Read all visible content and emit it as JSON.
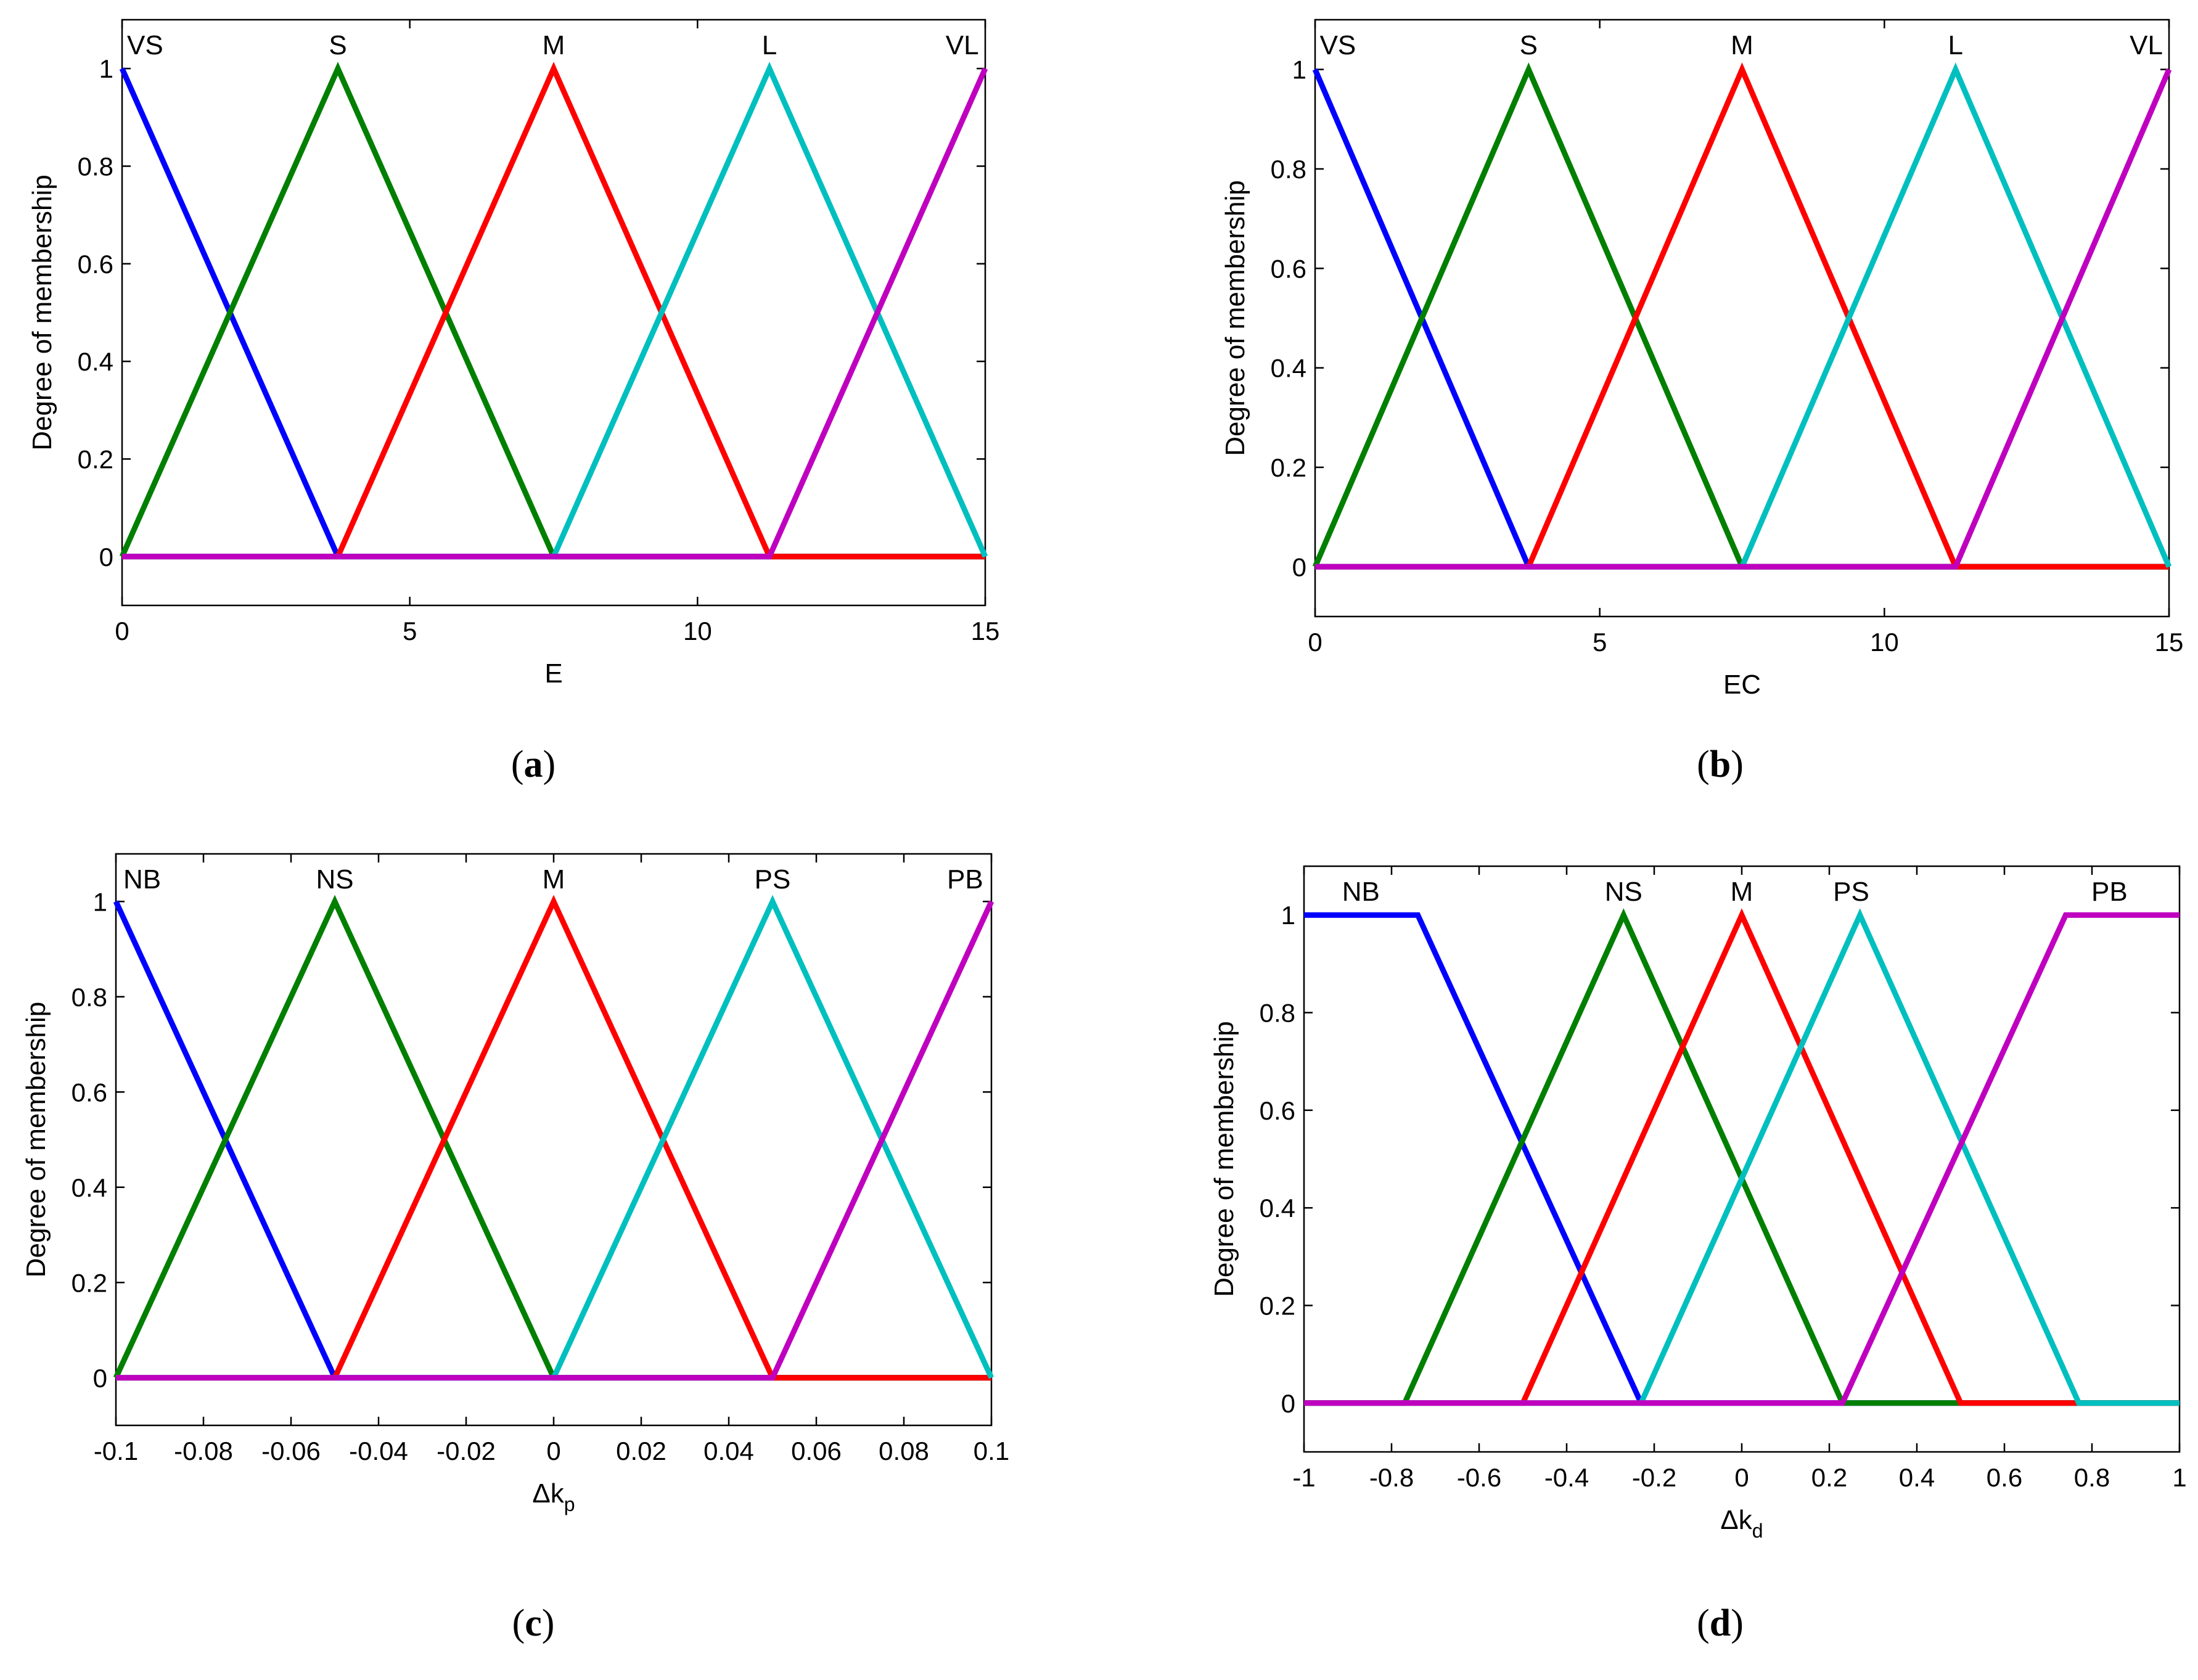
{
  "colors": {
    "blue": "#0000ff",
    "green": "#007f00",
    "red": "#ff0000",
    "cyan": "#00bfbf",
    "magenta": "#bf00bf"
  },
  "chart_data": [
    {
      "type": "line",
      "caption_letter": "a",
      "xlabel": "E",
      "xlabel_sub": "",
      "ylabel": "Degree of membership",
      "xlim": [
        0,
        15
      ],
      "ylim": [
        -0.1,
        1.1
      ],
      "xticks": [
        0,
        5,
        10,
        15
      ],
      "xtick_labels": [
        "0",
        "5",
        "10",
        "15"
      ],
      "yticks": [
        0,
        0.2,
        0.4,
        0.6,
        0.8,
        1
      ],
      "ytick_labels": [
        "0",
        "0.2",
        "0.4",
        "0.6",
        "0.8",
        "1"
      ],
      "series": [
        {
          "name": "VS",
          "color": "blue",
          "points": [
            [
              0,
              1
            ],
            [
              3.75,
              0
            ],
            [
              15,
              0
            ]
          ],
          "label_x": 0.4
        },
        {
          "name": "S",
          "color": "green",
          "points": [
            [
              0,
              0
            ],
            [
              3.75,
              1
            ],
            [
              7.5,
              0
            ],
            [
              15,
              0
            ]
          ],
          "label_x": 3.75
        },
        {
          "name": "M",
          "color": "red",
          "points": [
            [
              0,
              0
            ],
            [
              3.75,
              0
            ],
            [
              7.5,
              1
            ],
            [
              11.25,
              0
            ],
            [
              15,
              0
            ]
          ],
          "label_x": 7.5
        },
        {
          "name": "L",
          "color": "cyan",
          "points": [
            [
              0,
              0
            ],
            [
              7.5,
              0
            ],
            [
              11.25,
              1
            ],
            [
              15,
              0
            ]
          ],
          "label_x": 11.25
        },
        {
          "name": "VL",
          "color": "magenta",
          "points": [
            [
              0,
              0
            ],
            [
              11.25,
              0
            ],
            [
              15,
              1
            ]
          ],
          "label_x": 14.6
        }
      ]
    },
    {
      "type": "line",
      "caption_letter": "b",
      "xlabel": "EC",
      "xlabel_sub": "",
      "ylabel": "Degree of membership",
      "xlim": [
        0,
        15
      ],
      "ylim": [
        -0.1,
        1.1
      ],
      "xticks": [
        0,
        5,
        10,
        15
      ],
      "xtick_labels": [
        "0",
        "5",
        "10",
        "15"
      ],
      "yticks": [
        0,
        0.2,
        0.4,
        0.6,
        0.8,
        1
      ],
      "ytick_labels": [
        "0",
        "0.2",
        "0.4",
        "0.6",
        "0.8",
        "1"
      ],
      "series": [
        {
          "name": "VS",
          "color": "blue",
          "points": [
            [
              0,
              1
            ],
            [
              3.75,
              0
            ],
            [
              15,
              0
            ]
          ],
          "label_x": 0.4
        },
        {
          "name": "S",
          "color": "green",
          "points": [
            [
              0,
              0
            ],
            [
              3.75,
              1
            ],
            [
              7.5,
              0
            ],
            [
              15,
              0
            ]
          ],
          "label_x": 3.75
        },
        {
          "name": "M",
          "color": "red",
          "points": [
            [
              0,
              0
            ],
            [
              3.75,
              0
            ],
            [
              7.5,
              1
            ],
            [
              11.25,
              0
            ],
            [
              15,
              0
            ]
          ],
          "label_x": 7.5
        },
        {
          "name": "L",
          "color": "cyan",
          "points": [
            [
              0,
              0
            ],
            [
              7.5,
              0
            ],
            [
              11.25,
              1
            ],
            [
              15,
              0
            ]
          ],
          "label_x": 11.25
        },
        {
          "name": "VL",
          "color": "magenta",
          "points": [
            [
              0,
              0
            ],
            [
              11.25,
              0
            ],
            [
              15,
              1
            ]
          ],
          "label_x": 14.6
        }
      ]
    },
    {
      "type": "line",
      "caption_letter": "c",
      "xlabel": "Δk",
      "xlabel_sub": "p",
      "ylabel": "Degree of membership",
      "xlim": [
        -0.1,
        0.1
      ],
      "ylim": [
        -0.1,
        1.1
      ],
      "xticks": [
        -0.1,
        -0.08,
        -0.06,
        -0.04,
        -0.02,
        0,
        0.02,
        0.04,
        0.06,
        0.08,
        0.1
      ],
      "xtick_labels": [
        "-0.1",
        "-0.08",
        "-0.06",
        "-0.04",
        "-0.02",
        "0",
        "0.02",
        "0.04",
        "0.06",
        "0.08",
        "0.1"
      ],
      "yticks": [
        0,
        0.2,
        0.4,
        0.6,
        0.8,
        1
      ],
      "ytick_labels": [
        "0",
        "0.2",
        "0.4",
        "0.6",
        "0.8",
        "1"
      ],
      "series": [
        {
          "name": "NB",
          "color": "blue",
          "points": [
            [
              -0.1,
              1
            ],
            [
              -0.05,
              0
            ],
            [
              0.1,
              0
            ]
          ],
          "label_x": -0.094
        },
        {
          "name": "NS",
          "color": "green",
          "points": [
            [
              -0.1,
              0
            ],
            [
              -0.05,
              1
            ],
            [
              0,
              0
            ],
            [
              0.1,
              0
            ]
          ],
          "label_x": -0.05
        },
        {
          "name": "M",
          "color": "red",
          "points": [
            [
              -0.1,
              0
            ],
            [
              -0.05,
              0
            ],
            [
              0,
              1
            ],
            [
              0.05,
              0
            ],
            [
              0.1,
              0
            ]
          ],
          "label_x": 0
        },
        {
          "name": "PS",
          "color": "cyan",
          "points": [
            [
              -0.1,
              0
            ],
            [
              0,
              0
            ],
            [
              0.05,
              1
            ],
            [
              0.1,
              0
            ]
          ],
          "label_x": 0.05
        },
        {
          "name": "PB",
          "color": "magenta",
          "points": [
            [
              -0.1,
              0
            ],
            [
              0.05,
              0
            ],
            [
              0.1,
              1
            ]
          ],
          "label_x": 0.094
        }
      ]
    },
    {
      "type": "line",
      "caption_letter": "d",
      "xlabel": "Δk",
      "xlabel_sub": "d",
      "ylabel": "Degree of membership",
      "xlim": [
        -1,
        1
      ],
      "ylim": [
        -0.1,
        1.1
      ],
      "xticks": [
        -1,
        -0.8,
        -0.6,
        -0.4,
        -0.2,
        0,
        0.2,
        0.4,
        0.6,
        0.8,
        1
      ],
      "xtick_labels": [
        "-1",
        "-0.8",
        "-0.6",
        "-0.4",
        "-0.2",
        "0",
        "0.2",
        "0.4",
        "0.6",
        "0.8",
        "1"
      ],
      "yticks": [
        0,
        0.2,
        0.4,
        0.6,
        0.8,
        1
      ],
      "ytick_labels": [
        "0",
        "0.2",
        "0.4",
        "0.6",
        "0.8",
        "1"
      ],
      "series": [
        {
          "name": "NB",
          "color": "blue",
          "points": [
            [
              -1,
              1
            ],
            [
              -0.74,
              1
            ],
            [
              -0.23,
              0
            ],
            [
              1,
              0
            ]
          ],
          "label_x": -0.87
        },
        {
          "name": "NS",
          "color": "green",
          "points": [
            [
              -1,
              0
            ],
            [
              -0.77,
              0
            ],
            [
              -0.27,
              1
            ],
            [
              0.23,
              0
            ],
            [
              1,
              0
            ]
          ],
          "label_x": -0.27
        },
        {
          "name": "M",
          "color": "red",
          "points": [
            [
              -1,
              0
            ],
            [
              -0.5,
              0
            ],
            [
              0,
              1
            ],
            [
              0.5,
              0
            ],
            [
              1,
              0
            ]
          ],
          "label_x": 0
        },
        {
          "name": "PS",
          "color": "cyan",
          "points": [
            [
              -1,
              0
            ],
            [
              -0.23,
              0
            ],
            [
              0.27,
              1
            ],
            [
              0.77,
              0
            ],
            [
              1,
              0
            ]
          ],
          "label_x": 0.25
        },
        {
          "name": "PB",
          "color": "magenta",
          "points": [
            [
              -1,
              0
            ],
            [
              0.23,
              0
            ],
            [
              0.74,
              1
            ],
            [
              1,
              1
            ]
          ],
          "label_x": 0.84
        }
      ]
    }
  ]
}
